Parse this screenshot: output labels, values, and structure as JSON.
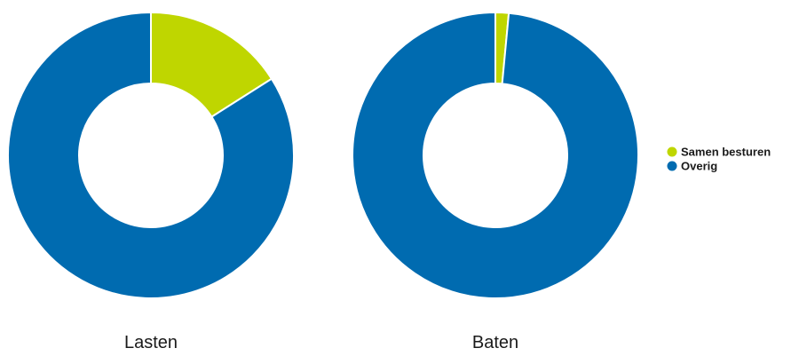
{
  "chart_data": {
    "type": "pie",
    "legend_position": "right",
    "legend": [
      {
        "name": "Samen besturen",
        "color": "#bfd600"
      },
      {
        "name": "Overig",
        "color": "#006bb0"
      }
    ],
    "charts": [
      {
        "label": "Lasten",
        "slices": [
          {
            "name": "Samen besturen",
            "value": 16,
            "color": "#bfd600"
          },
          {
            "name": "Overig",
            "value": 84,
            "color": "#006bb0"
          }
        ]
      },
      {
        "label": "Baten",
        "slices": [
          {
            "name": "Samen besturen",
            "value": 1.5,
            "color": "#bfd600"
          },
          {
            "name": "Overig",
            "value": 98.5,
            "color": "#006bb0"
          }
        ]
      }
    ]
  }
}
